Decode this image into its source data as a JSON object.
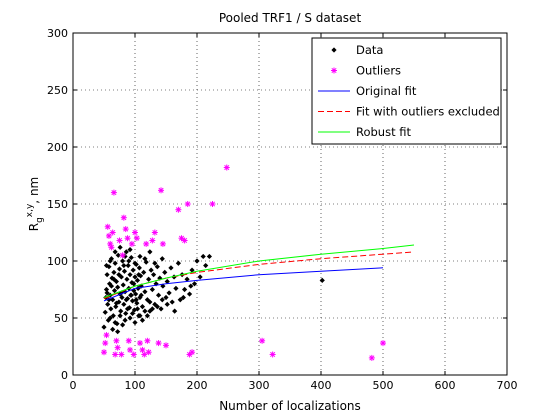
{
  "chart_data": {
    "type": "scatter",
    "title": "Pooled TRF1 / S dataset",
    "xlabel": "Number of localizations",
    "ylabel": {
      "base": "R",
      "sub": "g",
      "sup": "x,y",
      "suffix": ", nm"
    },
    "xlim": [
      0,
      700
    ],
    "ylim": [
      0,
      300
    ],
    "xticks": [
      0,
      100,
      200,
      300,
      400,
      500,
      600,
      700
    ],
    "yticks": [
      0,
      50,
      100,
      150,
      200,
      250,
      300
    ],
    "grid": true,
    "legend_position": "top-right",
    "series": [
      {
        "name": "Data",
        "kind": "points",
        "marker": "dot",
        "color": "#000000",
        "points": [
          [
            50,
            42
          ],
          [
            52,
            55
          ],
          [
            53,
            68
          ],
          [
            54,
            75
          ],
          [
            55,
            88
          ],
          [
            56,
            62
          ],
          [
            57,
            48
          ],
          [
            58,
            95
          ],
          [
            59,
            80
          ],
          [
            60,
            70
          ],
          [
            61,
            58
          ],
          [
            62,
            102
          ],
          [
            63,
            85
          ],
          [
            64,
            66
          ],
          [
            65,
            52
          ],
          [
            66,
            90
          ],
          [
            67,
            74
          ],
          [
            68,
            98
          ],
          [
            69,
            60
          ],
          [
            70,
            82
          ],
          [
            71,
            45
          ],
          [
            72,
            77
          ],
          [
            73,
            105
          ],
          [
            74,
            64
          ],
          [
            75,
            93
          ],
          [
            76,
            71
          ],
          [
            77,
            56
          ],
          [
            78,
            86
          ],
          [
            79,
            68
          ],
          [
            80,
            100
          ],
          [
            81,
            79
          ],
          [
            82,
            62
          ],
          [
            83,
            91
          ],
          [
            84,
            73
          ],
          [
            85,
            54
          ],
          [
            86,
            108
          ],
          [
            87,
            84
          ],
          [
            88,
            67
          ],
          [
            89,
            96
          ],
          [
            90,
            76
          ],
          [
            91,
            59
          ],
          [
            92,
            88
          ],
          [
            93,
            70
          ],
          [
            94,
            103
          ],
          [
            95,
            81
          ],
          [
            96,
            65
          ],
          [
            97,
            92
          ],
          [
            98,
            74
          ],
          [
            99,
            57
          ],
          [
            100,
            86
          ],
          [
            101,
            71
          ],
          [
            102,
            97
          ],
          [
            103,
            63
          ],
          [
            104,
            83
          ],
          [
            105,
            76
          ],
          [
            106,
            52
          ],
          [
            107,
            94
          ],
          [
            108,
            68
          ],
          [
            109,
            87
          ],
          [
            110,
            78
          ],
          [
            112,
            60
          ],
          [
            114,
            90
          ],
          [
            116,
            73
          ],
          [
            118,
            99
          ],
          [
            120,
            66
          ],
          [
            122,
            84
          ],
          [
            124,
            56
          ],
          [
            126,
            92
          ],
          [
            128,
            75
          ],
          [
            130,
            88
          ],
          [
            132,
            62
          ],
          [
            134,
            80
          ],
          [
            136,
            95
          ],
          [
            138,
            70
          ],
          [
            140,
            85
          ],
          [
            142,
            58
          ],
          [
            145,
            78
          ],
          [
            148,
            90
          ],
          [
            150,
            68
          ],
          [
            152,
            82
          ],
          [
            155,
            72
          ],
          [
            158,
            94
          ],
          [
            160,
            64
          ],
          [
            163,
            86
          ],
          [
            166,
            76
          ],
          [
            170,
            98
          ],
          [
            173,
            66
          ],
          [
            176,
            88
          ],
          [
            180,
            75
          ],
          [
            184,
            84
          ],
          [
            188,
            71
          ],
          [
            192,
            92
          ],
          [
            196,
            80
          ],
          [
            200,
            100
          ],
          [
            205,
            86
          ],
          [
            210,
            104
          ],
          [
            214,
            96
          ],
          [
            220,
            104
          ],
          [
            402,
            83
          ],
          [
            55,
            72
          ],
          [
            58,
            66
          ],
          [
            62,
            78
          ],
          [
            66,
            84
          ],
          [
            70,
            63
          ],
          [
            74,
            88
          ],
          [
            78,
            72
          ],
          [
            82,
            96
          ],
          [
            86,
            66
          ],
          [
            90,
            100
          ],
          [
            94,
            70
          ],
          [
            98,
            80
          ],
          [
            102,
            66
          ],
          [
            106,
            88
          ],
          [
            110,
            70
          ],
          [
            60,
            50
          ],
          [
            64,
            40
          ],
          [
            68,
            46
          ],
          [
            72,
            38
          ],
          [
            76,
            52
          ],
          [
            80,
            44
          ],
          [
            84,
            48
          ],
          [
            88,
            58
          ],
          [
            92,
            50
          ],
          [
            96,
            54
          ],
          [
            100,
            46
          ],
          [
            104,
            58
          ],
          [
            108,
            52
          ],
          [
            112,
            48
          ],
          [
            116,
            56
          ],
          [
            120,
            52
          ],
          [
            124,
            64
          ],
          [
            128,
            58
          ],
          [
            136,
            60
          ],
          [
            144,
            66
          ],
          [
            152,
            62
          ],
          [
            164,
            56
          ],
          [
            178,
            68
          ],
          [
            190,
            78
          ],
          [
            54,
            96
          ],
          [
            60,
            100
          ],
          [
            68,
            108
          ],
          [
            76,
            112
          ],
          [
            84,
            104
          ],
          [
            92,
            110
          ],
          [
            100,
            98
          ],
          [
            108,
            104
          ],
          [
            116,
            102
          ],
          [
            124,
            108
          ],
          [
            132,
            98
          ],
          [
            144,
            102
          ]
        ]
      },
      {
        "name": "Outliers",
        "kind": "points",
        "marker": "star",
        "color": "#ff00ff",
        "points": [
          [
            50,
            20
          ],
          [
            52,
            28
          ],
          [
            54,
            35
          ],
          [
            56,
            130
          ],
          [
            58,
            122
          ],
          [
            60,
            115
          ],
          [
            62,
            112
          ],
          [
            64,
            125
          ],
          [
            66,
            160
          ],
          [
            68,
            18
          ],
          [
            70,
            30
          ],
          [
            72,
            24
          ],
          [
            75,
            118
          ],
          [
            78,
            18
          ],
          [
            80,
            105
          ],
          [
            82,
            138
          ],
          [
            85,
            128
          ],
          [
            88,
            120
          ],
          [
            90,
            30
          ],
          [
            92,
            22
          ],
          [
            95,
            115
          ],
          [
            98,
            18
          ],
          [
            100,
            125
          ],
          [
            103,
            120
          ],
          [
            108,
            28
          ],
          [
            112,
            22
          ],
          [
            115,
            18
          ],
          [
            118,
            115
          ],
          [
            120,
            30
          ],
          [
            122,
            20
          ],
          [
            128,
            118
          ],
          [
            132,
            125
          ],
          [
            138,
            28
          ],
          [
            142,
            162
          ],
          [
            145,
            115
          ],
          [
            150,
            26
          ],
          [
            170,
            145
          ],
          [
            175,
            120
          ],
          [
            180,
            118
          ],
          [
            185,
            150
          ],
          [
            188,
            18
          ],
          [
            192,
            20
          ],
          [
            225,
            150
          ],
          [
            248,
            182
          ],
          [
            305,
            30
          ],
          [
            322,
            18
          ],
          [
            482,
            15
          ],
          [
            500,
            28
          ]
        ]
      },
      {
        "name": "Original fit",
        "kind": "line",
        "style": "solid",
        "color": "#0000ff",
        "points": [
          [
            50,
            65
          ],
          [
            100,
            76
          ],
          [
            150,
            80
          ],
          [
            200,
            83
          ],
          [
            300,
            88
          ],
          [
            400,
            91
          ],
          [
            500,
            94
          ]
        ]
      },
      {
        "name": "Fit with outliers excluded",
        "kind": "line",
        "style": "dashed",
        "color": "#ff0000",
        "points": [
          [
            50,
            67
          ],
          [
            100,
            78
          ],
          [
            150,
            85
          ],
          [
            200,
            90
          ],
          [
            300,
            97
          ],
          [
            400,
            102
          ],
          [
            500,
            106
          ],
          [
            550,
            108
          ]
        ]
      },
      {
        "name": "Robust fit",
        "kind": "line",
        "style": "solid",
        "color": "#00ff00",
        "points": [
          [
            50,
            68
          ],
          [
            100,
            78
          ],
          [
            150,
            85
          ],
          [
            200,
            91
          ],
          [
            300,
            100
          ],
          [
            400,
            106
          ],
          [
            500,
            111
          ],
          [
            550,
            114
          ]
        ]
      }
    ]
  }
}
